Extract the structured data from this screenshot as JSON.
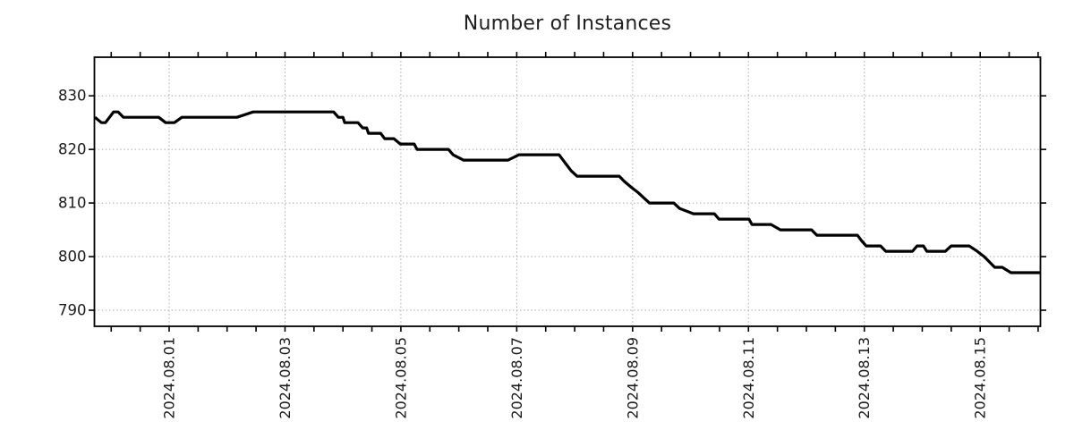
{
  "page": {
    "background": "#ffffff"
  },
  "chart_data": {
    "type": "line",
    "title": "Number of Instances",
    "xlabel": "",
    "ylabel": "",
    "legend": null,
    "grid": true,
    "grid_color": "#ababab",
    "axis_color": "#000000",
    "line_color": "#000000",
    "title_color": "#1f1f1f",
    "tick_label_color": "#1a1a1a",
    "x_unit": "days, 1.0 = 2024.08.01 00:00",
    "xlim": [
      -0.29,
      16.04
    ],
    "ylim": [
      787.0,
      837.2
    ],
    "y_ticks": [
      790,
      800,
      810,
      820,
      830
    ],
    "x_tick_days": [
      1,
      3,
      5,
      7,
      9,
      11,
      13,
      15
    ],
    "x_tick_labels": [
      "2024.08.01",
      "2024.08.03",
      "2024.08.05",
      "2024.08.07",
      "2024.08.09",
      "2024.08.11",
      "2024.08.13",
      "2024.08.15"
    ],
    "x_minor_tick_interval": 0.5,
    "series": [
      {
        "name": "instances",
        "points": [
          [
            -0.28,
            826
          ],
          [
            -0.17,
            825
          ],
          [
            -0.1,
            825
          ],
          [
            0.04,
            827
          ],
          [
            0.12,
            827
          ],
          [
            0.21,
            826
          ],
          [
            0.82,
            826
          ],
          [
            0.94,
            825
          ],
          [
            1.09,
            825
          ],
          [
            1.22,
            826
          ],
          [
            2.17,
            826
          ],
          [
            2.45,
            827
          ],
          [
            3.84,
            827
          ],
          [
            3.92,
            826
          ],
          [
            4.0,
            826
          ],
          [
            4.03,
            825
          ],
          [
            4.26,
            825
          ],
          [
            4.34,
            824
          ],
          [
            4.41,
            824
          ],
          [
            4.44,
            823
          ],
          [
            4.65,
            823
          ],
          [
            4.72,
            822
          ],
          [
            4.88,
            822
          ],
          [
            4.99,
            821
          ],
          [
            5.23,
            821
          ],
          [
            5.28,
            820
          ],
          [
            5.82,
            820
          ],
          [
            5.9,
            819
          ],
          [
            6.08,
            818
          ],
          [
            6.85,
            818
          ],
          [
            7.04,
            819
          ],
          [
            7.73,
            819
          ],
          [
            7.8,
            818
          ],
          [
            7.87,
            817
          ],
          [
            7.94,
            816
          ],
          [
            8.04,
            815
          ],
          [
            8.77,
            815
          ],
          [
            8.86,
            814
          ],
          [
            8.97,
            813
          ],
          [
            9.09,
            812
          ],
          [
            9.19,
            811
          ],
          [
            9.29,
            810
          ],
          [
            9.71,
            810
          ],
          [
            9.81,
            809
          ],
          [
            10.05,
            808
          ],
          [
            10.41,
            808
          ],
          [
            10.49,
            807
          ],
          [
            11.01,
            807
          ],
          [
            11.06,
            806
          ],
          [
            11.39,
            806
          ],
          [
            11.55,
            805
          ],
          [
            12.09,
            805
          ],
          [
            12.18,
            804
          ],
          [
            12.88,
            804
          ],
          [
            12.95,
            803
          ],
          [
            13.03,
            802
          ],
          [
            13.28,
            802
          ],
          [
            13.37,
            801
          ],
          [
            13.83,
            801
          ],
          [
            13.91,
            802
          ],
          [
            14.02,
            802
          ],
          [
            14.08,
            801
          ],
          [
            14.4,
            801
          ],
          [
            14.5,
            802
          ],
          [
            14.81,
            802
          ],
          [
            14.95,
            801
          ],
          [
            15.07,
            800
          ],
          [
            15.16,
            799
          ],
          [
            15.25,
            798
          ],
          [
            15.38,
            798
          ],
          [
            15.53,
            797
          ],
          [
            16.04,
            797
          ]
        ]
      }
    ]
  }
}
